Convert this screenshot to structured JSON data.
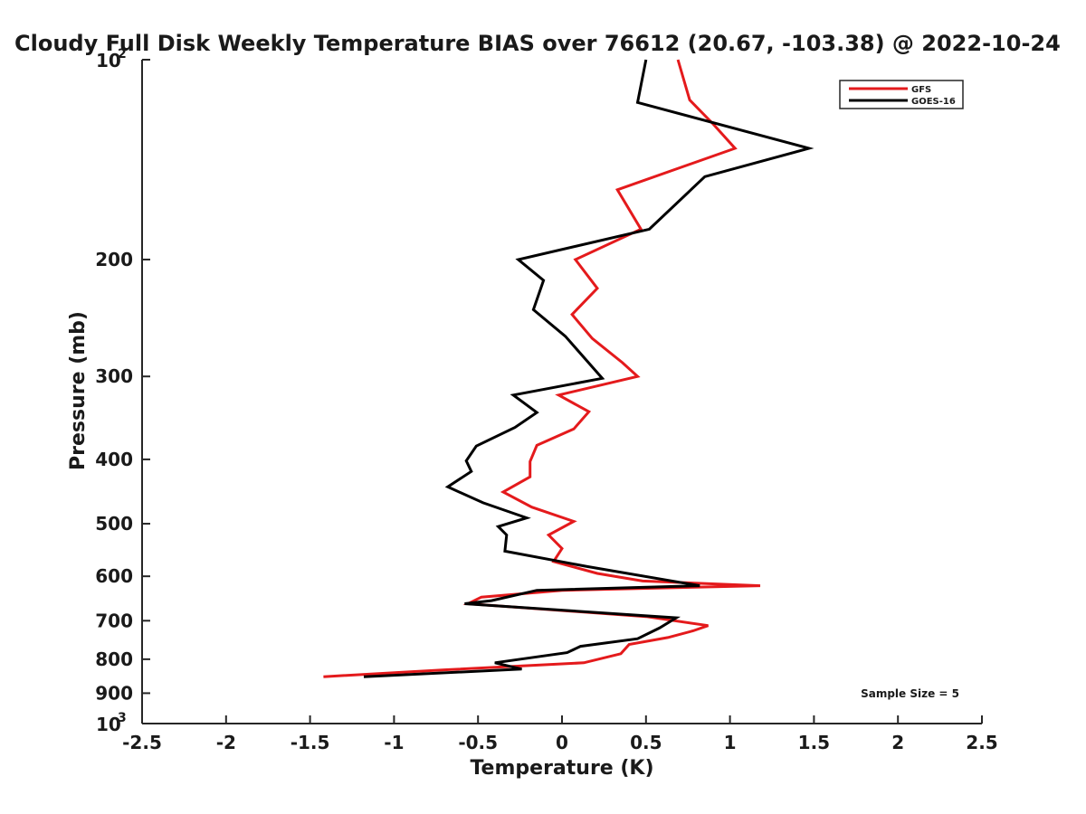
{
  "chart_data": {
    "type": "line",
    "title": "Cloudy Full Disk Weekly Temperature BIAS over 76612 (20.67, -103.38) @ 2022-10-24",
    "xlabel": "Temperature (K)",
    "ylabel": "Pressure (mb)",
    "xlim": [
      -2.5,
      2.5
    ],
    "ylim": [
      100,
      1000
    ],
    "y_scale": "log",
    "y_reversed": true,
    "x_ticks": [
      "-2.5",
      "-2",
      "-1.5",
      "-1",
      "-0.5",
      "0",
      "0.5",
      "1",
      "1.5",
      "2",
      "2.5"
    ],
    "y_ticks": [
      {
        "value": 100,
        "base": "10",
        "exp": "2"
      },
      {
        "value": 200,
        "label": "200"
      },
      {
        "value": 300,
        "label": "300"
      },
      {
        "value": 400,
        "label": "400"
      },
      {
        "value": 500,
        "label": "500"
      },
      {
        "value": 600,
        "label": "600"
      },
      {
        "value": 700,
        "label": "700"
      },
      {
        "value": 800,
        "label": "800"
      },
      {
        "value": 900,
        "label": "900"
      },
      {
        "value": 1000,
        "base": "10",
        "exp": "3"
      }
    ],
    "legend_position": "top-right",
    "annotation": "Sample Size = 5",
    "series": [
      {
        "name": "GFS",
        "color": "#e41a1c",
        "points": [
          [
            0.69,
            100
          ],
          [
            0.76,
            115
          ],
          [
            0.9,
            125
          ],
          [
            1.03,
            136
          ],
          [
            0.33,
            157
          ],
          [
            0.47,
            180
          ],
          [
            0.08,
            200
          ],
          [
            0.21,
            221
          ],
          [
            0.06,
            242
          ],
          [
            0.18,
            263
          ],
          [
            0.36,
            286
          ],
          [
            0.45,
            300
          ],
          [
            -0.02,
            320
          ],
          [
            0.16,
            339
          ],
          [
            0.07,
            360
          ],
          [
            -0.15,
            381
          ],
          [
            -0.19,
            403
          ],
          [
            -0.19,
            425
          ],
          [
            -0.35,
            448
          ],
          [
            -0.18,
            472
          ],
          [
            0.07,
            496
          ],
          [
            -0.08,
            520
          ],
          [
            0.0,
            545
          ],
          [
            -0.05,
            570
          ],
          [
            0.21,
            594
          ],
          [
            0.48,
            610
          ],
          [
            1.18,
            620
          ],
          [
            0.0,
            630
          ],
          [
            -0.48,
            645
          ],
          [
            -0.56,
            660
          ],
          [
            0.5,
            690
          ],
          [
            0.87,
            712
          ],
          [
            0.78,
            725
          ],
          [
            0.63,
            742
          ],
          [
            0.4,
            760
          ],
          [
            0.35,
            785
          ],
          [
            0.13,
            810
          ],
          [
            -0.7,
            830
          ],
          [
            -1.42,
            850
          ]
        ]
      },
      {
        "name": "GOES-16",
        "color": "#000000",
        "points": [
          [
            0.5,
            100
          ],
          [
            0.45,
            116
          ],
          [
            1.47,
            136
          ],
          [
            0.85,
            150
          ],
          [
            0.52,
            180
          ],
          [
            -0.26,
            200
          ],
          [
            -0.11,
            215
          ],
          [
            -0.17,
            238
          ],
          [
            0.02,
            261
          ],
          [
            0.24,
            302
          ],
          [
            -0.29,
            320
          ],
          [
            -0.15,
            340
          ],
          [
            -0.28,
            358
          ],
          [
            -0.51,
            382
          ],
          [
            -0.57,
            402
          ],
          [
            -0.54,
            417
          ],
          [
            -0.68,
            440
          ],
          [
            -0.47,
            465
          ],
          [
            -0.21,
            490
          ],
          [
            -0.38,
            505
          ],
          [
            -0.33,
            520
          ],
          [
            -0.34,
            550
          ],
          [
            0.15,
            580
          ],
          [
            0.82,
            620
          ],
          [
            -0.15,
            630
          ],
          [
            -0.42,
            653
          ],
          [
            -0.58,
            660
          ],
          [
            0.68,
            693
          ],
          [
            0.58,
            718
          ],
          [
            0.45,
            745
          ],
          [
            0.11,
            765
          ],
          [
            0.03,
            782
          ],
          [
            -0.4,
            810
          ],
          [
            -0.24,
            828
          ],
          [
            -1.18,
            850
          ]
        ]
      }
    ]
  }
}
